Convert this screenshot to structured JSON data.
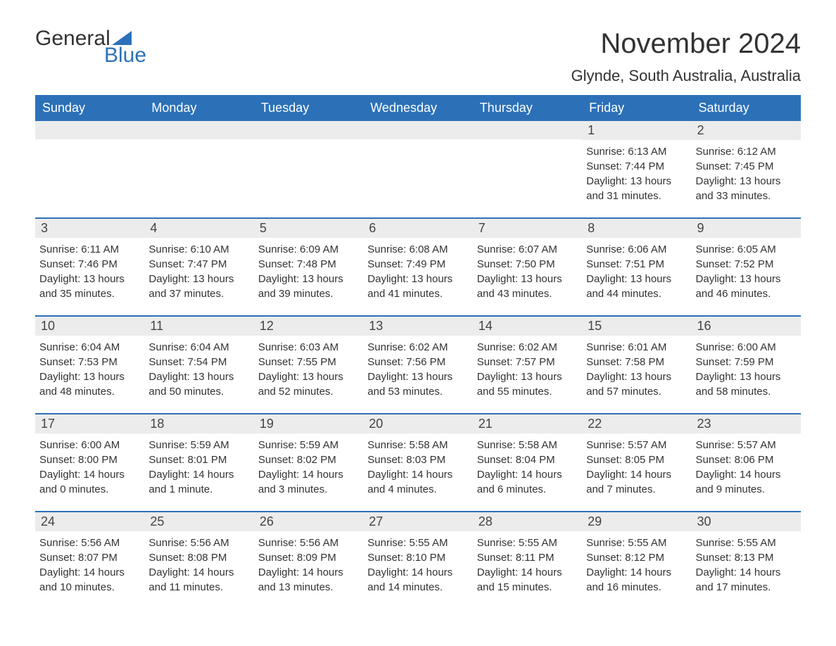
{
  "logo": {
    "text_general": "General",
    "text_blue": "Blue",
    "flag_color": "#2c71b8"
  },
  "header": {
    "month_title": "November 2024",
    "location": "Glynde, South Australia, Australia"
  },
  "colors": {
    "header_bg": "#2c71b8",
    "header_text": "#ffffff",
    "daynum_bg": "#ececec",
    "border": "#2c71b8",
    "text": "#333333",
    "background": "#ffffff"
  },
  "fonts": {
    "month_title_size": 40,
    "location_size": 22,
    "weekday_size": 18,
    "daynum_size": 18,
    "body_size": 15
  },
  "weekdays": [
    "Sunday",
    "Monday",
    "Tuesday",
    "Wednesday",
    "Thursday",
    "Friday",
    "Saturday"
  ],
  "weeks": [
    [
      {
        "day": "",
        "sunrise": "",
        "sunset": "",
        "daylight": ""
      },
      {
        "day": "",
        "sunrise": "",
        "sunset": "",
        "daylight": ""
      },
      {
        "day": "",
        "sunrise": "",
        "sunset": "",
        "daylight": ""
      },
      {
        "day": "",
        "sunrise": "",
        "sunset": "",
        "daylight": ""
      },
      {
        "day": "",
        "sunrise": "",
        "sunset": "",
        "daylight": ""
      },
      {
        "day": "1",
        "sunrise": "Sunrise: 6:13 AM",
        "sunset": "Sunset: 7:44 PM",
        "daylight": "Daylight: 13 hours and 31 minutes."
      },
      {
        "day": "2",
        "sunrise": "Sunrise: 6:12 AM",
        "sunset": "Sunset: 7:45 PM",
        "daylight": "Daylight: 13 hours and 33 minutes."
      }
    ],
    [
      {
        "day": "3",
        "sunrise": "Sunrise: 6:11 AM",
        "sunset": "Sunset: 7:46 PM",
        "daylight": "Daylight: 13 hours and 35 minutes."
      },
      {
        "day": "4",
        "sunrise": "Sunrise: 6:10 AM",
        "sunset": "Sunset: 7:47 PM",
        "daylight": "Daylight: 13 hours and 37 minutes."
      },
      {
        "day": "5",
        "sunrise": "Sunrise: 6:09 AM",
        "sunset": "Sunset: 7:48 PM",
        "daylight": "Daylight: 13 hours and 39 minutes."
      },
      {
        "day": "6",
        "sunrise": "Sunrise: 6:08 AM",
        "sunset": "Sunset: 7:49 PM",
        "daylight": "Daylight: 13 hours and 41 minutes."
      },
      {
        "day": "7",
        "sunrise": "Sunrise: 6:07 AM",
        "sunset": "Sunset: 7:50 PM",
        "daylight": "Daylight: 13 hours and 43 minutes."
      },
      {
        "day": "8",
        "sunrise": "Sunrise: 6:06 AM",
        "sunset": "Sunset: 7:51 PM",
        "daylight": "Daylight: 13 hours and 44 minutes."
      },
      {
        "day": "9",
        "sunrise": "Sunrise: 6:05 AM",
        "sunset": "Sunset: 7:52 PM",
        "daylight": "Daylight: 13 hours and 46 minutes."
      }
    ],
    [
      {
        "day": "10",
        "sunrise": "Sunrise: 6:04 AM",
        "sunset": "Sunset: 7:53 PM",
        "daylight": "Daylight: 13 hours and 48 minutes."
      },
      {
        "day": "11",
        "sunrise": "Sunrise: 6:04 AM",
        "sunset": "Sunset: 7:54 PM",
        "daylight": "Daylight: 13 hours and 50 minutes."
      },
      {
        "day": "12",
        "sunrise": "Sunrise: 6:03 AM",
        "sunset": "Sunset: 7:55 PM",
        "daylight": "Daylight: 13 hours and 52 minutes."
      },
      {
        "day": "13",
        "sunrise": "Sunrise: 6:02 AM",
        "sunset": "Sunset: 7:56 PM",
        "daylight": "Daylight: 13 hours and 53 minutes."
      },
      {
        "day": "14",
        "sunrise": "Sunrise: 6:02 AM",
        "sunset": "Sunset: 7:57 PM",
        "daylight": "Daylight: 13 hours and 55 minutes."
      },
      {
        "day": "15",
        "sunrise": "Sunrise: 6:01 AM",
        "sunset": "Sunset: 7:58 PM",
        "daylight": "Daylight: 13 hours and 57 minutes."
      },
      {
        "day": "16",
        "sunrise": "Sunrise: 6:00 AM",
        "sunset": "Sunset: 7:59 PM",
        "daylight": "Daylight: 13 hours and 58 minutes."
      }
    ],
    [
      {
        "day": "17",
        "sunrise": "Sunrise: 6:00 AM",
        "sunset": "Sunset: 8:00 PM",
        "daylight": "Daylight: 14 hours and 0 minutes."
      },
      {
        "day": "18",
        "sunrise": "Sunrise: 5:59 AM",
        "sunset": "Sunset: 8:01 PM",
        "daylight": "Daylight: 14 hours and 1 minute."
      },
      {
        "day": "19",
        "sunrise": "Sunrise: 5:59 AM",
        "sunset": "Sunset: 8:02 PM",
        "daylight": "Daylight: 14 hours and 3 minutes."
      },
      {
        "day": "20",
        "sunrise": "Sunrise: 5:58 AM",
        "sunset": "Sunset: 8:03 PM",
        "daylight": "Daylight: 14 hours and 4 minutes."
      },
      {
        "day": "21",
        "sunrise": "Sunrise: 5:58 AM",
        "sunset": "Sunset: 8:04 PM",
        "daylight": "Daylight: 14 hours and 6 minutes."
      },
      {
        "day": "22",
        "sunrise": "Sunrise: 5:57 AM",
        "sunset": "Sunset: 8:05 PM",
        "daylight": "Daylight: 14 hours and 7 minutes."
      },
      {
        "day": "23",
        "sunrise": "Sunrise: 5:57 AM",
        "sunset": "Sunset: 8:06 PM",
        "daylight": "Daylight: 14 hours and 9 minutes."
      }
    ],
    [
      {
        "day": "24",
        "sunrise": "Sunrise: 5:56 AM",
        "sunset": "Sunset: 8:07 PM",
        "daylight": "Daylight: 14 hours and 10 minutes."
      },
      {
        "day": "25",
        "sunrise": "Sunrise: 5:56 AM",
        "sunset": "Sunset: 8:08 PM",
        "daylight": "Daylight: 14 hours and 11 minutes."
      },
      {
        "day": "26",
        "sunrise": "Sunrise: 5:56 AM",
        "sunset": "Sunset: 8:09 PM",
        "daylight": "Daylight: 14 hours and 13 minutes."
      },
      {
        "day": "27",
        "sunrise": "Sunrise: 5:55 AM",
        "sunset": "Sunset: 8:10 PM",
        "daylight": "Daylight: 14 hours and 14 minutes."
      },
      {
        "day": "28",
        "sunrise": "Sunrise: 5:55 AM",
        "sunset": "Sunset: 8:11 PM",
        "daylight": "Daylight: 14 hours and 15 minutes."
      },
      {
        "day": "29",
        "sunrise": "Sunrise: 5:55 AM",
        "sunset": "Sunset: 8:12 PM",
        "daylight": "Daylight: 14 hours and 16 minutes."
      },
      {
        "day": "30",
        "sunrise": "Sunrise: 5:55 AM",
        "sunset": "Sunset: 8:13 PM",
        "daylight": "Daylight: 14 hours and 17 minutes."
      }
    ]
  ]
}
